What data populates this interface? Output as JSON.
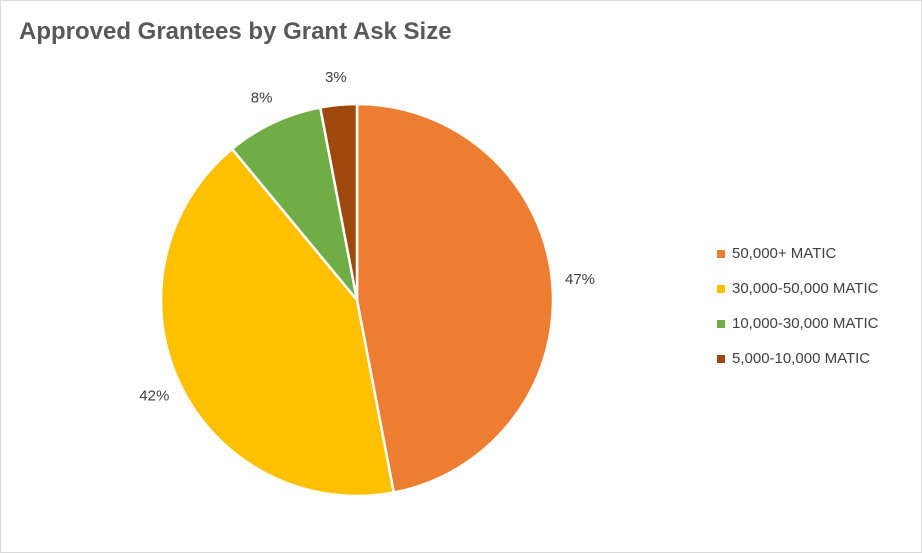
{
  "chart_data": {
    "type": "pie",
    "title": "Approved Grantees by Grant Ask Size",
    "legend_position": "right",
    "slices": [
      {
        "name": "50,000+ MATIC",
        "value": 47,
        "label": "47%",
        "color": "#ED7D31"
      },
      {
        "name": "30,000-50,000 MATIC",
        "value": 42,
        "label": "42%",
        "color": "#FFC000"
      },
      {
        "name": "10,000-30,000 MATIC",
        "value": 8,
        "label": "8%",
        "color": "#70AD47"
      },
      {
        "name": "5,000-10,000 MATIC",
        "value": 3,
        "label": "3%",
        "color": "#9E480E"
      }
    ]
  }
}
